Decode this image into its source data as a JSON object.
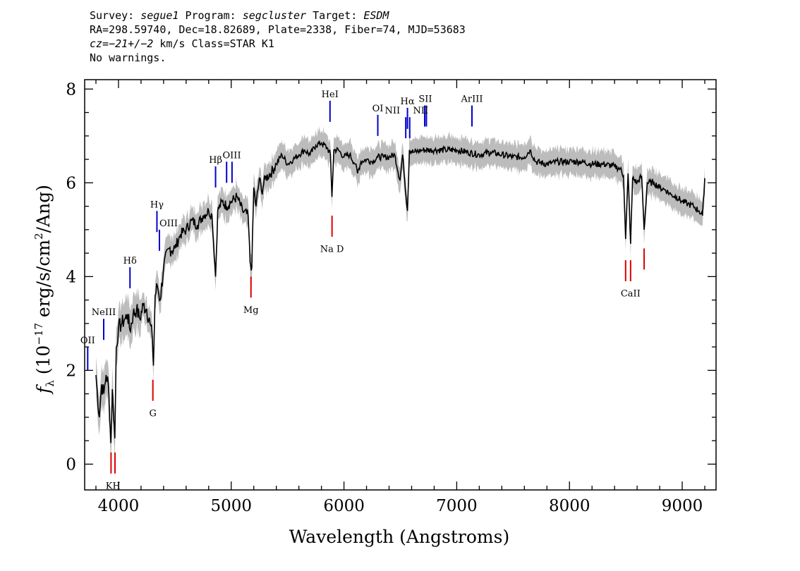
{
  "header": {
    "survey_label": "Survey:",
    "survey": "segue1",
    "program_label": "Program:",
    "program": "segcluster",
    "target_label": "Target:",
    "target": "ESDM",
    "line2": "RA=298.59740, Dec=18.82689, Plate=2338, Fiber=74, MJD=53683",
    "cz_label": "cz=",
    "cz_value": "−21+/−2",
    "cz_unit": "km/s Class=STAR K1",
    "warnings": "No warnings."
  },
  "chart_data": {
    "type": "line",
    "xlabel": "Wavelength (Angstroms)",
    "ylabel": "f_λ (10^-17 erg/s/cm^2/Ang)",
    "xlim": [
      3700,
      9300
    ],
    "ylim": [
      -0.55,
      8.2
    ],
    "xticks": [
      4000,
      5000,
      6000,
      7000,
      8000,
      9000
    ],
    "yticks": [
      0,
      2,
      4,
      6,
      8
    ],
    "series": [
      {
        "x": [
          3800,
          3830,
          3850,
          3870,
          3890,
          3910,
          3933,
          3945,
          3968,
          3980,
          4000,
          4030,
          4060,
          4080,
          4102,
          4130,
          4160,
          4190,
          4220,
          4250,
          4280,
          4300,
          4310,
          4325,
          4345,
          4370,
          4400,
          4450,
          4500,
          4550,
          4600,
          4650,
          4700,
          4750,
          4800,
          4830,
          4861,
          4880,
          4920,
          4960,
          5000,
          5050,
          5100,
          5150,
          5167,
          5183,
          5200,
          5220,
          5250,
          5270,
          5300,
          5350,
          5400,
          5450,
          5500,
          5550,
          5600,
          5650,
          5700,
          5750,
          5800,
          5850,
          5880,
          5893,
          5910,
          5950,
          6000,
          6050,
          6100,
          6120,
          6150,
          6200,
          6250,
          6300,
          6350,
          6400,
          6450,
          6497,
          6520,
          6563,
          6580,
          6620,
          6700,
          6800,
          6900,
          7000,
          7100,
          7200,
          7300,
          7400,
          7500,
          7600,
          7650,
          7700,
          7800,
          7900,
          8000,
          8100,
          8200,
          8300,
          8400,
          8450,
          8480,
          8498,
          8520,
          8542,
          8560,
          8600,
          8640,
          8662,
          8690,
          8750,
          8800,
          8850,
          8900,
          8950,
          9000,
          9050,
          9100,
          9150,
          9180,
          9200
        ],
        "y": [
          1.9,
          1.0,
          1.7,
          1.5,
          1.9,
          1.7,
          0.45,
          1.6,
          0.55,
          2.5,
          2.9,
          3.0,
          3.1,
          3.2,
          2.85,
          3.2,
          3.3,
          3.1,
          3.4,
          3.3,
          3.0,
          2.7,
          2.1,
          3.6,
          3.8,
          3.5,
          4.2,
          4.6,
          4.6,
          4.9,
          5.0,
          5.2,
          5.1,
          5.3,
          5.4,
          5.3,
          4.0,
          5.4,
          5.6,
          5.5,
          5.6,
          5.7,
          5.4,
          5.3,
          4.3,
          4.2,
          5.9,
          5.5,
          6.1,
          5.8,
          6.1,
          6.2,
          6.4,
          6.6,
          6.4,
          6.5,
          6.6,
          6.7,
          6.6,
          6.8,
          6.85,
          6.75,
          6.6,
          5.7,
          6.7,
          6.7,
          6.55,
          6.6,
          6.4,
          6.2,
          6.45,
          6.5,
          6.45,
          6.55,
          6.55,
          6.55,
          6.6,
          6.05,
          6.6,
          5.4,
          6.7,
          6.65,
          6.7,
          6.7,
          6.7,
          6.7,
          6.65,
          6.6,
          6.65,
          6.6,
          6.55,
          6.55,
          6.7,
          6.45,
          6.4,
          6.45,
          6.45,
          6.45,
          6.4,
          6.4,
          6.35,
          6.3,
          6.15,
          4.8,
          6.2,
          4.7,
          6.1,
          6.0,
          6.15,
          5.0,
          6.0,
          6.0,
          5.9,
          5.85,
          5.75,
          5.7,
          5.6,
          5.55,
          5.5,
          5.4,
          5.3,
          6.1
        ]
      }
    ],
    "emission_lines": [
      {
        "label": "OII",
        "wave": 3727,
        "y0": 2.0,
        "y1": 2.5
      },
      {
        "label": "NeIII",
        "wave": 3869,
        "y0": 2.65,
        "y1": 3.1
      },
      {
        "label": "Hδ",
        "wave": 4102,
        "y0": 3.75,
        "y1": 4.2
      },
      {
        "label": "Hγ",
        "wave": 4341,
        "y0": 4.95,
        "y1": 5.4
      },
      {
        "label": "OIII",
        "wave": 4363,
        "y0": 4.55,
        "y1": 5.0
      },
      {
        "label": "Hβ",
        "wave": 4861,
        "y0": 5.9,
        "y1": 6.35
      },
      {
        "label": "OIII",
        "wave": 4959,
        "y0": 6.0,
        "y1": 6.45
      },
      {
        "label": "OIII",
        "wave": 5007,
        "y0": 6.0,
        "y1": 6.45
      },
      {
        "label": "HeI",
        "wave": 5876,
        "y0": 7.3,
        "y1": 7.75
      },
      {
        "label": "OI",
        "wave": 6300,
        "y0": 7.0,
        "y1": 7.45
      },
      {
        "label": "NII",
        "wave": 6548,
        "y0": 6.95,
        "y1": 7.4
      },
      {
        "label": "Hα",
        "wave": 6563,
        "y0": 7.15,
        "y1": 7.6
      },
      {
        "label": "NII",
        "wave": 6583,
        "y0": 6.95,
        "y1": 7.4
      },
      {
        "label": "SII",
        "wave": 6716,
        "y0": 7.2,
        "y1": 7.65
      },
      {
        "label": "SII",
        "wave": 6731,
        "y0": 7.2,
        "y1": 7.65
      },
      {
        "label": "ArIII",
        "wave": 7135,
        "y0": 7.2,
        "y1": 7.65
      }
    ],
    "absorption_lines": [
      {
        "label": "K",
        "wave": 3934,
        "y0": -0.2,
        "y1": 0.25
      },
      {
        "label": "H",
        "wave": 3969,
        "y0": -0.2,
        "y1": 0.25
      },
      {
        "label": "G",
        "wave": 4305,
        "y0": 1.35,
        "y1": 1.8
      },
      {
        "label": "Mg",
        "wave": 5175,
        "y0": 3.55,
        "y1": 4.0
      },
      {
        "label": "Na D",
        "wave": 5894,
        "y0": 4.85,
        "y1": 5.3
      },
      {
        "label": "CaII",
        "wave": 8498,
        "y0": 3.9,
        "y1": 4.35
      },
      {
        "label": "CaII",
        "wave": 8542,
        "y0": 3.9,
        "y1": 4.35
      },
      {
        "label": "CaII",
        "wave": 8662,
        "y0": 4.15,
        "y1": 4.6
      }
    ],
    "text_labels": {
      "OII": "OII",
      "NeIII": "NeIII",
      "Hd": "Hδ",
      "Hg": "Hγ",
      "OIIIa": "OIII",
      "Hb": "Hβ",
      "OIIIb": "OIII",
      "HeI": "HeI",
      "OI": "OI",
      "NII1": "NII",
      "Ha": "Hα",
      "SII": "SII",
      "NII2": "NII",
      "ArIII": "ArIII",
      "KH": "KH",
      "G": "G",
      "Mg": "Mg",
      "NaD": "Na D",
      "CaII": "CaII"
    }
  },
  "colors": {
    "spectrum": "#000000",
    "error_band": "#bcbcbc",
    "emission": "#0000cc",
    "absorption": "#dd0000",
    "axes": "#000000"
  }
}
